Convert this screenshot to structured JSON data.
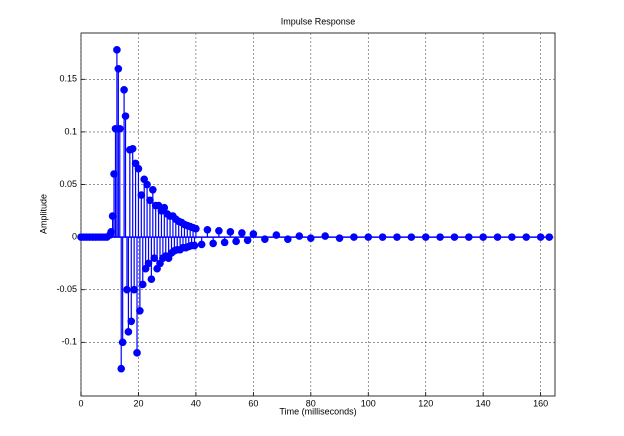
{
  "chart_data": {
    "type": "stem",
    "title": "Impulse Response",
    "x_label": "Time (milliseconds)",
    "y_label": "Amplitude",
    "color": "#0000ff",
    "grid": true,
    "xlim": [
      0,
      165
    ],
    "ylim": [
      -0.151,
      0.194
    ],
    "xticks": [
      0,
      20,
      40,
      60,
      80,
      100,
      120,
      140,
      160
    ],
    "yticks": [
      -0.1,
      -0.05,
      0,
      0.05,
      0.1,
      0.15
    ],
    "x": [
      0,
      1,
      2,
      3,
      4,
      5,
      6,
      7,
      8,
      9,
      10,
      10.5,
      11,
      11.5,
      12,
      12.5,
      13,
      13.5,
      14,
      14.5,
      15,
      15.5,
      16,
      16.5,
      17,
      17.5,
      18,
      18.5,
      19,
      19.5,
      20,
      20.5,
      21,
      21.5,
      22,
      22.5,
      23,
      23.5,
      24,
      24.5,
      25,
      25.5,
      26,
      26.5,
      27,
      27.5,
      28,
      28.5,
      29,
      29.5,
      30,
      30.5,
      31,
      31.5,
      32,
      32.5,
      33,
      33.5,
      34,
      34.5,
      35,
      35.5,
      36,
      36.5,
      37,
      37.5,
      38,
      38.5,
      39,
      39.5,
      40,
      42,
      44,
      46,
      48,
      50,
      52,
      54,
      56,
      58,
      60,
      64,
      68,
      72,
      76,
      80,
      85,
      90,
      95,
      100,
      105,
      110,
      115,
      120,
      125,
      130,
      135,
      140,
      145,
      150,
      155,
      160,
      163
    ],
    "values": [
      0,
      0,
      0,
      0,
      0,
      0,
      0,
      0,
      0,
      0,
      0.002,
      0.005,
      0.02,
      0.06,
      0.103,
      0.178,
      0.16,
      0.103,
      -0.125,
      -0.1,
      0.14,
      0.115,
      -0.05,
      -0.09,
      0.083,
      -0.08,
      0.084,
      -0.05,
      0.07,
      -0.11,
      0.065,
      -0.07,
      0.04,
      -0.045,
      0.055,
      -0.03,
      0.05,
      -0.025,
      0.035,
      -0.04,
      0.045,
      -0.02,
      0.03,
      -0.03,
      0.03,
      -0.025,
      0.025,
      -0.02,
      0.028,
      -0.018,
      0.022,
      -0.02,
      0.02,
      -0.015,
      0.02,
      -0.013,
      0.017,
      -0.012,
      0.015,
      -0.012,
      0.014,
      -0.01,
      0.012,
      -0.01,
      0.011,
      -0.009,
      0.01,
      -0.008,
      0.009,
      -0.008,
      0.008,
      -0.007,
      0.007,
      -0.006,
      0.006,
      -0.005,
      0.005,
      -0.004,
      0.004,
      -0.003,
      0.003,
      -0.002,
      0.002,
      -0.002,
      0.001,
      -0.001,
      0.001,
      -0.001,
      0,
      0,
      0,
      0,
      0,
      0,
      0,
      0,
      0,
      0,
      0,
      0,
      0,
      0,
      0
    ]
  }
}
